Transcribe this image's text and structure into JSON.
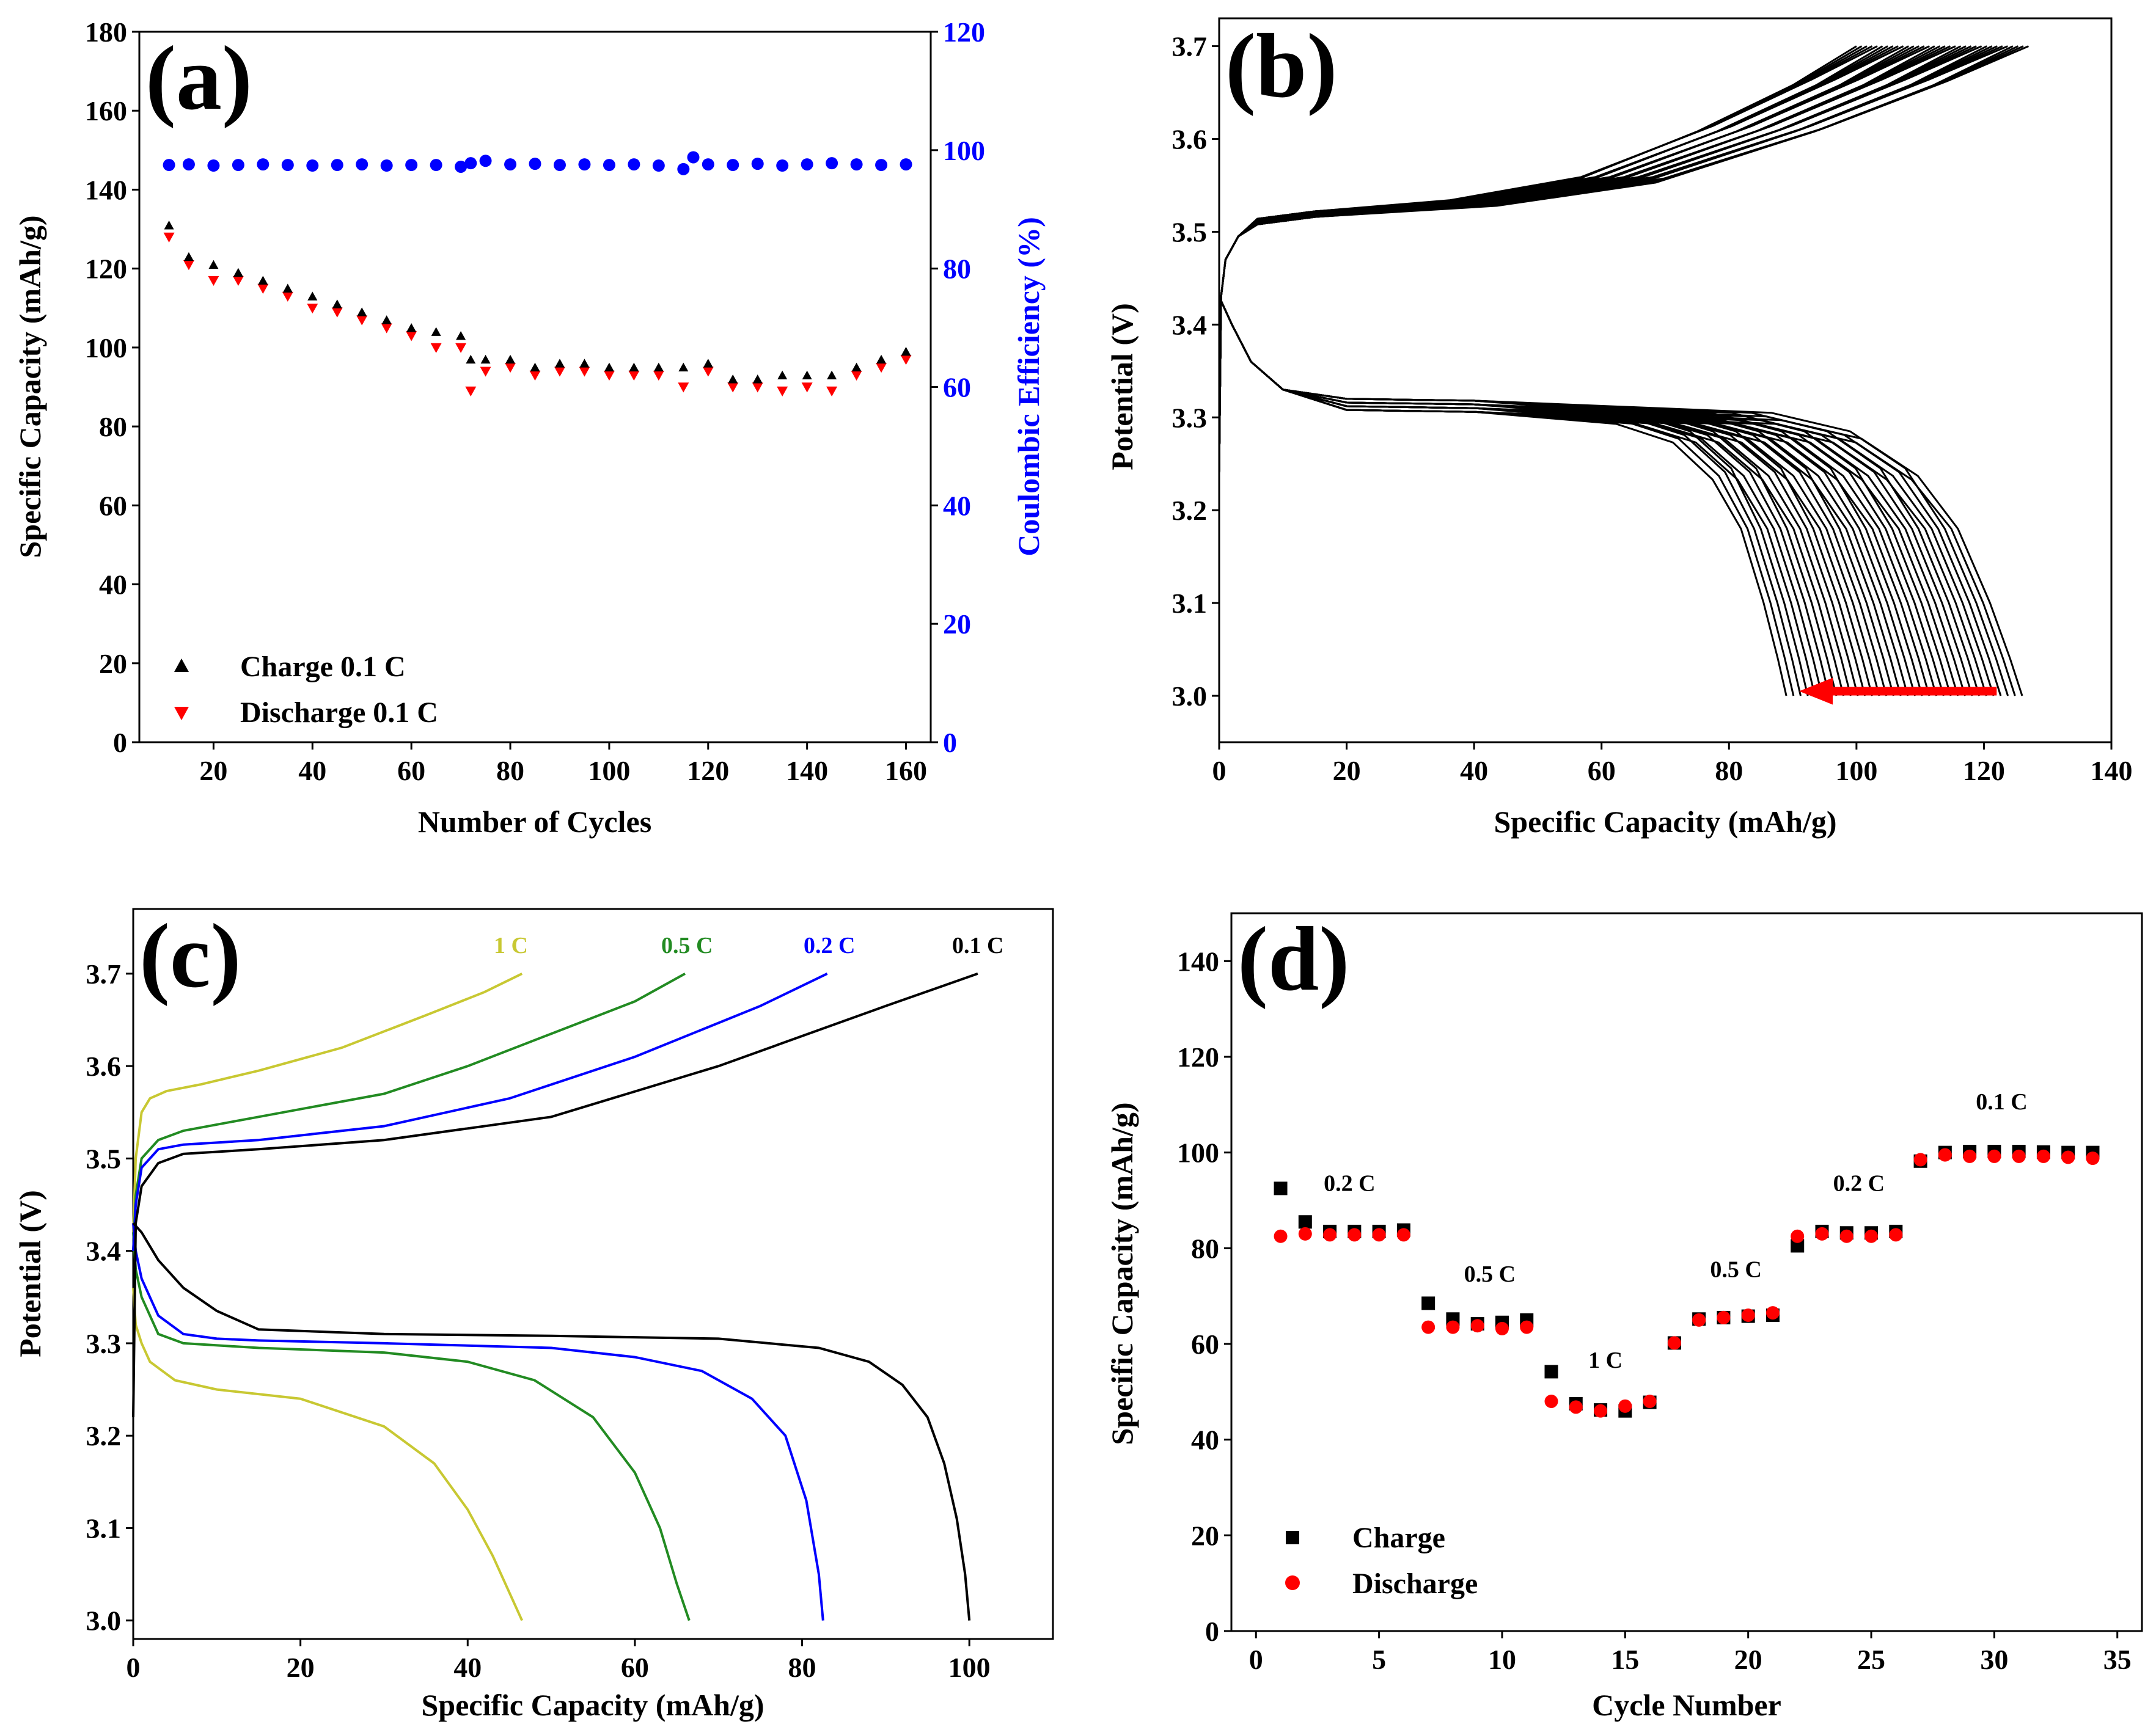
{
  "colors": {
    "black": "#000000",
    "red": "#ff0000",
    "blue": "#0000ff",
    "green": "#228b22",
    "yellow": "#c8c832"
  },
  "chart_data": [
    {
      "panel": "(a)",
      "type": "scatter",
      "xlabel": "Number of Cycles",
      "ylabel": "Specific Capacity (mAh/g)",
      "y2label": "Coulombic Efficiency (%)",
      "xlim": [
        5,
        165
      ],
      "ylim": [
        0,
        180
      ],
      "y2lim": [
        0,
        120
      ],
      "xticks": [
        20,
        40,
        60,
        80,
        100,
        120,
        140,
        160
      ],
      "yticks": [
        0,
        20,
        40,
        60,
        80,
        100,
        120,
        140,
        160,
        180
      ],
      "y2ticks": [
        0,
        20,
        40,
        60,
        80,
        100,
        120
      ],
      "legend": [
        "Charge 0.1 C",
        "Discharge 0.1 C"
      ],
      "series": [
        {
          "name": "Charge 0.1 C",
          "color": "#000000",
          "marker": "triangle-up",
          "x": [
            11,
            15,
            20,
            25,
            30,
            35,
            40,
            45,
            50,
            55,
            60,
            65,
            70,
            72,
            75,
            80,
            85,
            90,
            95,
            100,
            105,
            110,
            115,
            120,
            125,
            130,
            135,
            140,
            145,
            150,
            155,
            160
          ],
          "y": [
            130,
            122,
            120,
            118,
            116,
            114,
            112,
            110,
            108,
            106,
            104,
            103,
            102,
            96,
            96,
            96,
            94,
            95,
            95,
            94,
            94,
            94,
            94,
            95,
            91,
            91,
            92,
            92,
            92,
            94,
            96,
            98
          ]
        },
        {
          "name": "Discharge 0.1 C",
          "color": "#ff0000",
          "marker": "triangle-down",
          "x": [
            11,
            15,
            20,
            25,
            30,
            35,
            40,
            45,
            50,
            55,
            60,
            65,
            70,
            72,
            75,
            80,
            85,
            90,
            95,
            100,
            105,
            110,
            115,
            120,
            125,
            130,
            135,
            140,
            145,
            150,
            155,
            160
          ],
          "y": [
            128,
            121,
            117,
            117,
            115,
            113,
            110,
            109,
            107,
            105,
            103,
            100,
            100,
            89,
            94,
            95,
            93,
            94,
            94,
            93,
            93,
            93,
            90,
            94,
            90,
            90,
            89,
            90,
            89,
            93,
            95,
            97
          ]
        },
        {
          "name": "Coulombic Efficiency",
          "color": "#0000ff",
          "marker": "circle",
          "axis": "right",
          "x": [
            11,
            15,
            20,
            25,
            30,
            35,
            40,
            45,
            50,
            55,
            60,
            65,
            70,
            72,
            75,
            80,
            85,
            90,
            95,
            100,
            105,
            110,
            115,
            117,
            120,
            125,
            130,
            135,
            140,
            145,
            150,
            155,
            160
          ],
          "y": [
            97.5,
            97.6,
            97.4,
            97.5,
            97.6,
            97.5,
            97.4,
            97.5,
            97.6,
            97.4,
            97.5,
            97.5,
            97.2,
            97.8,
            98.2,
            97.6,
            97.7,
            97.5,
            97.6,
            97.5,
            97.6,
            97.4,
            96.8,
            98.8,
            97.6,
            97.5,
            97.7,
            97.4,
            97.6,
            97.8,
            97.6,
            97.5,
            97.6
          ]
        }
      ]
    },
    {
      "panel": "(b)",
      "type": "line",
      "xlabel": "Specific Capacity (mAh/g)",
      "ylabel": "Potential (V)",
      "xlim": [
        0,
        140
      ],
      "ylim": [
        2.95,
        3.73
      ],
      "xticks": [
        0,
        20,
        40,
        60,
        80,
        100,
        120,
        140
      ],
      "yticks": [
        3.0,
        3.1,
        3.2,
        3.3,
        3.4,
        3.5,
        3.6,
        3.7
      ],
      "curve_family": {
        "color": "#000000",
        "count": 34,
        "charge_end_capacity_range": [
          100,
          127
        ],
        "discharge_end_capacity_range": [
          89,
          126
        ]
      },
      "arrow": {
        "color": "#ff0000",
        "from": [
          122,
          3.005
        ],
        "to": [
          91,
          3.005
        ]
      }
    },
    {
      "panel": "(c)",
      "type": "line",
      "xlabel": "Specific Capacity (mAh/g)",
      "ylabel": "Potential (V)",
      "xlim": [
        0,
        110
      ],
      "ylim": [
        2.98,
        3.77
      ],
      "xticks": [
        0,
        20,
        40,
        60,
        80,
        100
      ],
      "yticks": [
        3.0,
        3.1,
        3.2,
        3.3,
        3.4,
        3.5,
        3.6,
        3.7
      ],
      "series": [
        {
          "name": "1 C",
          "color": "#c8c832",
          "charge": {
            "x": [
              0,
              0.3,
              1,
              2,
              4,
              8,
              15,
              25,
              35,
              42,
              46.5
            ],
            "y": [
              3.42,
              3.5,
              3.55,
              3.565,
              3.573,
              3.58,
              3.595,
              3.62,
              3.655,
              3.68,
              3.7
            ]
          },
          "discharge": {
            "x": [
              0,
              0.3,
              1,
              2,
              5,
              10,
              20,
              30,
              36,
              40,
              43,
              45,
              46.5
            ],
            "y": [
              3.36,
              3.32,
              3.3,
              3.28,
              3.26,
              3.25,
              3.24,
              3.21,
              3.17,
              3.12,
              3.07,
              3.03,
              3.0
            ]
          }
        },
        {
          "name": "0.5 C",
          "color": "#228b22",
          "charge": {
            "x": [
              0,
              0.3,
              1,
              3,
              6,
              15,
              30,
              40,
              50,
              60,
              66
            ],
            "y": [
              3.4,
              3.46,
              3.5,
              3.52,
              3.53,
              3.545,
              3.57,
              3.6,
              3.635,
              3.67,
              3.7
            ]
          },
          "discharge": {
            "x": [
              0,
              0.3,
              1,
              3,
              6,
              15,
              30,
              40,
              48,
              55,
              60,
              63,
              65,
              66.5
            ],
            "y": [
              3.42,
              3.38,
              3.35,
              3.31,
              3.3,
              3.295,
              3.29,
              3.28,
              3.26,
              3.22,
              3.16,
              3.1,
              3.04,
              3.0
            ]
          }
        },
        {
          "name": "0.2 C",
          "color": "#0000ff",
          "charge": {
            "x": [
              0,
              0.3,
              1,
              3,
              6,
              15,
              30,
              45,
              60,
              75,
              83
            ],
            "y": [
              3.4,
              3.45,
              3.49,
              3.51,
              3.515,
              3.52,
              3.535,
              3.565,
              3.61,
              3.665,
              3.7
            ]
          },
          "discharge": {
            "x": [
              0,
              0.3,
              1,
              3,
              6,
              10,
              15,
              30,
              50,
              60,
              68,
              74,
              78,
              80.5,
              82,
              82.5
            ],
            "y": [
              3.43,
              3.4,
              3.37,
              3.33,
              3.31,
              3.305,
              3.303,
              3.3,
              3.295,
              3.285,
              3.27,
              3.24,
              3.2,
              3.13,
              3.05,
              3.0
            ]
          }
        },
        {
          "name": "0.1 C",
          "color": "#000000",
          "charge": {
            "x": [
              0,
              0.3,
              1,
              3,
              6,
              15,
              30,
              50,
              70,
              90,
              101
            ],
            "y": [
              3.22,
              3.43,
              3.47,
              3.495,
              3.505,
              3.51,
              3.52,
              3.545,
              3.6,
              3.665,
              3.7
            ]
          },
          "discharge": {
            "x": [
              0,
              1,
              3,
              6,
              10,
              15,
              30,
              50,
              70,
              82,
              88,
              92,
              95,
              97,
              98.5,
              99.5,
              100
            ],
            "y": [
              3.43,
              3.42,
              3.39,
              3.36,
              3.335,
              3.315,
              3.31,
              3.308,
              3.305,
              3.295,
              3.28,
              3.255,
              3.22,
              3.17,
              3.11,
              3.05,
              3.0
            ]
          }
        }
      ]
    },
    {
      "panel": "(d)",
      "type": "scatter",
      "xlabel": "Cycle Number",
      "ylabel": "Specific Capacity (mAh/g)",
      "xlim": [
        -1,
        36
      ],
      "ylim": [
        0,
        150
      ],
      "xticks": [
        0,
        5,
        10,
        15,
        20,
        25,
        30,
        35
      ],
      "yticks": [
        0,
        20,
        40,
        60,
        80,
        100,
        120,
        140
      ],
      "legend": [
        "Charge",
        "Discharge"
      ],
      "rate_labels": [
        {
          "text": "0.2 C",
          "x": 3.8,
          "y": 92
        },
        {
          "text": "0.5 C",
          "x": 9.5,
          "y": 73
        },
        {
          "text": "1 C",
          "x": 14.2,
          "y": 55
        },
        {
          "text": "0.5 C",
          "x": 19.5,
          "y": 74
        },
        {
          "text": "0.2 C",
          "x": 24.5,
          "y": 92
        },
        {
          "text": "0.1 C",
          "x": 30.3,
          "y": 109
        }
      ],
      "series": [
        {
          "name": "Charge",
          "color": "#000000",
          "marker": "square",
          "x": [
            1,
            2,
            3,
            4,
            5,
            6,
            7,
            8,
            9,
            10,
            11,
            12,
            13,
            14,
            15,
            16,
            17,
            18,
            19,
            20,
            21,
            22,
            23,
            24,
            25,
            26,
            27,
            28,
            29,
            30,
            31,
            32,
            33,
            34
          ],
          "y": [
            92.5,
            85.5,
            83.5,
            83.5,
            83.5,
            83.8,
            68.5,
            65.2,
            64.2,
            64.5,
            65,
            54.2,
            47.5,
            46.2,
            46,
            47.8,
            60.2,
            65.2,
            65.5,
            65.8,
            66,
            80.5,
            83.5,
            83.2,
            83.2,
            83.5,
            98.2,
            100,
            100.2,
            100.2,
            100.2,
            100.1,
            100,
            100
          ]
        },
        {
          "name": "Discharge",
          "color": "#ff0000",
          "marker": "circle",
          "x": [
            1,
            2,
            3,
            4,
            5,
            6,
            7,
            8,
            9,
            10,
            11,
            12,
            13,
            14,
            15,
            16,
            17,
            18,
            19,
            20,
            21,
            22,
            23,
            24,
            25,
            26,
            27,
            28,
            29,
            30,
            31,
            32,
            33,
            34
          ],
          "y": [
            82.5,
            83,
            82.8,
            82.8,
            82.8,
            82.8,
            63.5,
            63.5,
            63.8,
            63.2,
            63.5,
            48,
            46.8,
            46,
            47,
            48,
            60.2,
            65,
            65.5,
            66,
            66.5,
            82.5,
            83,
            82.5,
            82.5,
            82.8,
            98.5,
            99.5,
            99.2,
            99.2,
            99.2,
            99.2,
            99,
            98.8
          ]
        }
      ]
    }
  ]
}
